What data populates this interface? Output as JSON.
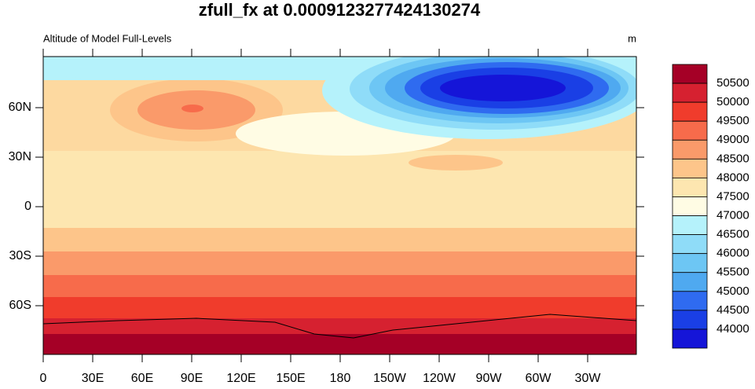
{
  "title": "zfull_fx at 0.0009123277424130274",
  "left_string": "Altitude of Model Full-Levels",
  "right_string": "m",
  "x_ticks": [
    "0",
    "30E",
    "60E",
    "90E",
    "120E",
    "150E",
    "180",
    "150W",
    "120W",
    "90W",
    "60W",
    "30W"
  ],
  "y_ticks": [
    "60N",
    "30N",
    "0",
    "30S",
    "60S"
  ],
  "colorbar": {
    "levels": [
      50500,
      50000,
      49500,
      49000,
      48500,
      48000,
      47500,
      47000,
      46500,
      46000,
      45500,
      45000,
      44500,
      44000
    ],
    "colors": [
      "#a50026",
      "#d62130",
      "#f03c2c",
      "#f76b4b",
      "#fa9a6a",
      "#fdc58a",
      "#fde6b0",
      "#fffce4",
      "#b5f2fb",
      "#8fdcf8",
      "#6dc6f4",
      "#4fa9f0",
      "#2f6bf0",
      "#1a3fe5",
      "#1515d8"
    ]
  }
}
